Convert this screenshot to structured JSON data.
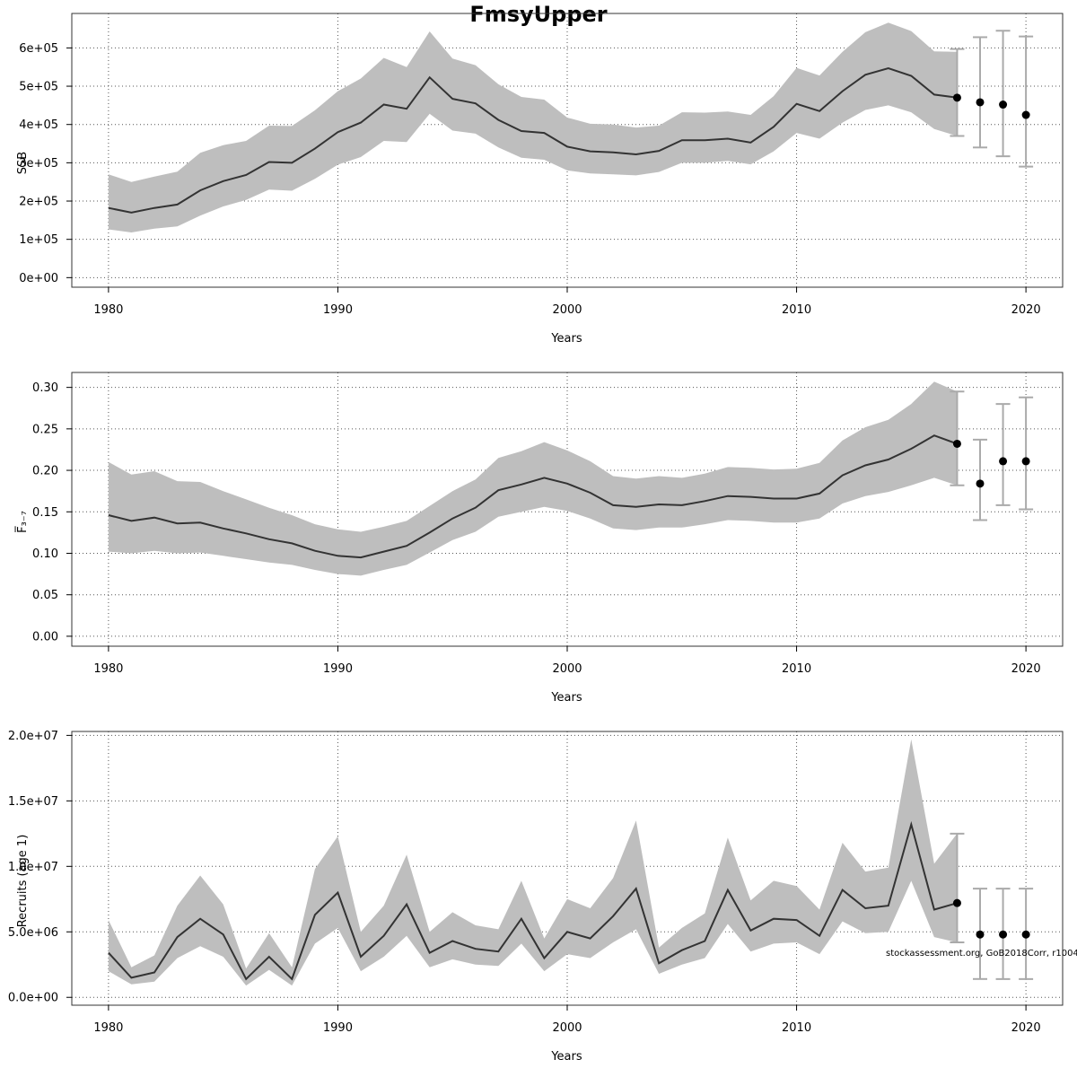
{
  "title": "FmsyUpper",
  "watermark": "stockassessment.org, GoB2018Corr, r10042",
  "colors": {
    "band": "#bebebe",
    "line": "#333333",
    "errorbar": "#aaaaaa",
    "point": "#000000",
    "grid": "#555555"
  },
  "chart_data": [
    {
      "type": "line",
      "xlabel": "Years",
      "ylabel": "SSB",
      "xlim": [
        1978.4,
        2021.6
      ],
      "ylim": [
        -25000,
        690000
      ],
      "xticks": [
        1980,
        1990,
        2000,
        2010,
        2020
      ],
      "yticks": [
        0,
        100000,
        200000,
        300000,
        400000,
        500000,
        600000
      ],
      "ytick_labels": [
        "0e+00",
        "1e+05",
        "2e+05",
        "3e+05",
        "4e+05",
        "5e+05",
        "6e+05"
      ],
      "grid": true,
      "x": [
        1980,
        1981,
        1982,
        1983,
        1984,
        1985,
        1986,
        1987,
        1988,
        1989,
        1990,
        1991,
        1992,
        1993,
        1994,
        1995,
        1996,
        1997,
        1998,
        1999,
        2000,
        2001,
        2002,
        2003,
        2004,
        2005,
        2006,
        2007,
        2008,
        2009,
        2010,
        2011,
        2012,
        2013,
        2014,
        2015,
        2016,
        2017
      ],
      "estimate": [
        182000,
        170000,
        182000,
        191000,
        228000,
        252000,
        268000,
        302000,
        300000,
        337000,
        380000,
        405000,
        452000,
        441000,
        523000,
        467000,
        455000,
        412000,
        383000,
        378000,
        342000,
        330000,
        327000,
        322000,
        331000,
        359000,
        359000,
        363000,
        353000,
        394000,
        454000,
        435000,
        487000,
        530000,
        547000,
        527000,
        478000,
        470000
      ],
      "lower": [
        126000,
        118000,
        128000,
        134000,
        162000,
        186000,
        203000,
        230000,
        227000,
        258000,
        295000,
        315000,
        357000,
        354000,
        428000,
        384000,
        376000,
        340000,
        313000,
        308000,
        280000,
        272000,
        270000,
        267000,
        276000,
        300000,
        300000,
        305000,
        296000,
        330000,
        378000,
        363000,
        405000,
        438000,
        450000,
        432000,
        388000,
        370000
      ],
      "upper": [
        270000,
        250000,
        264000,
        277000,
        326000,
        346000,
        357000,
        397000,
        396000,
        437000,
        487000,
        520000,
        574000,
        550000,
        643000,
        572000,
        555000,
        505000,
        472000,
        465000,
        418000,
        402000,
        400000,
        392000,
        397000,
        432000,
        431000,
        434000,
        425000,
        474000,
        548000,
        528000,
        590000,
        641000,
        666000,
        644000,
        591000,
        590000
      ],
      "forecast": {
        "x": [
          2017,
          2018,
          2019,
          2020
        ],
        "values": [
          470000,
          458000,
          452000,
          425000
        ],
        "lower": [
          370000,
          340000,
          317000,
          290000
        ],
        "upper": [
          597000,
          628000,
          645000,
          630000
        ]
      }
    },
    {
      "type": "line",
      "xlabel": "Years",
      "ylabel": "F̅₃₋₇",
      "xlim": [
        1978.4,
        2021.6
      ],
      "ylim": [
        -0.012,
        0.318
      ],
      "xticks": [
        1980,
        1990,
        2000,
        2010,
        2020
      ],
      "yticks": [
        0.0,
        0.05,
        0.1,
        0.15,
        0.2,
        0.25,
        0.3
      ],
      "ytick_labels": [
        "0.00",
        "0.05",
        "0.10",
        "0.15",
        "0.20",
        "0.25",
        "0.30"
      ],
      "grid": true,
      "x": [
        1980,
        1981,
        1982,
        1983,
        1984,
        1985,
        1986,
        1987,
        1988,
        1989,
        1990,
        1991,
        1992,
        1993,
        1994,
        1995,
        1996,
        1997,
        1998,
        1999,
        2000,
        2001,
        2002,
        2003,
        2004,
        2005,
        2006,
        2007,
        2008,
        2009,
        2010,
        2011,
        2012,
        2013,
        2014,
        2015,
        2016,
        2017
      ],
      "estimate": [
        0.146,
        0.139,
        0.143,
        0.136,
        0.137,
        0.13,
        0.124,
        0.117,
        0.112,
        0.103,
        0.097,
        0.095,
        0.102,
        0.109,
        0.125,
        0.142,
        0.155,
        0.176,
        0.183,
        0.191,
        0.184,
        0.173,
        0.158,
        0.156,
        0.159,
        0.158,
        0.163,
        0.169,
        0.168,
        0.166,
        0.166,
        0.172,
        0.194,
        0.206,
        0.213,
        0.226,
        0.242,
        0.232
      ],
      "lower": [
        0.102,
        0.1,
        0.103,
        0.1,
        0.101,
        0.097,
        0.093,
        0.089,
        0.086,
        0.08,
        0.075,
        0.073,
        0.08,
        0.086,
        0.101,
        0.116,
        0.126,
        0.144,
        0.15,
        0.156,
        0.151,
        0.142,
        0.13,
        0.128,
        0.131,
        0.131,
        0.135,
        0.14,
        0.139,
        0.137,
        0.137,
        0.142,
        0.16,
        0.169,
        0.174,
        0.182,
        0.191,
        0.182
      ],
      "upper": [
        0.21,
        0.195,
        0.199,
        0.187,
        0.186,
        0.175,
        0.165,
        0.155,
        0.146,
        0.135,
        0.129,
        0.126,
        0.132,
        0.139,
        0.157,
        0.175,
        0.189,
        0.215,
        0.223,
        0.234,
        0.224,
        0.211,
        0.193,
        0.19,
        0.193,
        0.191,
        0.196,
        0.204,
        0.203,
        0.201,
        0.202,
        0.209,
        0.236,
        0.252,
        0.261,
        0.28,
        0.307,
        0.295
      ],
      "forecast": {
        "x": [
          2017,
          2018,
          2019,
          2020
        ],
        "values": [
          0.232,
          0.184,
          0.211,
          0.211
        ],
        "lower": [
          0.182,
          0.14,
          0.158,
          0.153
        ],
        "upper": [
          0.295,
          0.237,
          0.28,
          0.288
        ]
      }
    },
    {
      "type": "line",
      "xlabel": "Years",
      "ylabel": "Recruits (age 1)",
      "xlim": [
        1978.4,
        2021.6
      ],
      "ylim": [
        -600000,
        20300000
      ],
      "xticks": [
        1980,
        1990,
        2000,
        2010,
        2020
      ],
      "yticks": [
        0,
        5000000,
        10000000,
        15000000,
        20000000
      ],
      "ytick_labels": [
        "0.0e+00",
        "5.0e+06",
        "1.0e+07",
        "1.5e+07",
        "2.0e+07"
      ],
      "grid": true,
      "x": [
        1980,
        1981,
        1982,
        1983,
        1984,
        1985,
        1986,
        1987,
        1988,
        1989,
        1990,
        1991,
        1992,
        1993,
        1994,
        1995,
        1996,
        1997,
        1998,
        1999,
        2000,
        2001,
        2002,
        2003,
        2004,
        2005,
        2006,
        2007,
        2008,
        2009,
        2010,
        2011,
        2012,
        2013,
        2014,
        2015,
        2016,
        2017
      ],
      "estimate": [
        3400000,
        1500000,
        1900000,
        4600000,
        6000000,
        4800000,
        1400000,
        3100000,
        1400000,
        6300000,
        8000000,
        3100000,
        4700000,
        7100000,
        3400000,
        4300000,
        3700000,
        3500000,
        6000000,
        3000000,
        5000000,
        4500000,
        6200000,
        8300000,
        2600000,
        3600000,
        4300000,
        8200000,
        5100000,
        6000000,
        5900000,
        4700000,
        8200000,
        6800000,
        7000000,
        13200000,
        6700000,
        7200000
      ],
      "lower": [
        2000000,
        1000000,
        1200000,
        3000000,
        3900000,
        3100000,
        900000,
        2100000,
        900000,
        4100000,
        5300000,
        2000000,
        3100000,
        4700000,
        2300000,
        2900000,
        2500000,
        2400000,
        4100000,
        2000000,
        3300000,
        3000000,
        4200000,
        5200000,
        1800000,
        2500000,
        3000000,
        5600000,
        3500000,
        4100000,
        4200000,
        3300000,
        5800000,
        4900000,
        5000000,
        8900000,
        4600000,
        4200000
      ],
      "upper": [
        5900000,
        2300000,
        3200000,
        7000000,
        9300000,
        7100000,
        2200000,
        4900000,
        2300000,
        9800000,
        12300000,
        5000000,
        7000000,
        10900000,
        5000000,
        6500000,
        5500000,
        5200000,
        8900000,
        4500000,
        7500000,
        6800000,
        9100000,
        13500000,
        3800000,
        5300000,
        6400000,
        12200000,
        7400000,
        8900000,
        8500000,
        6700000,
        11800000,
        9600000,
        9900000,
        19700000,
        10200000,
        12500000
      ],
      "forecast": {
        "x": [
          2017,
          2018,
          2019,
          2020
        ],
        "values": [
          7200000,
          4800000,
          4800000,
          4800000
        ],
        "lower": [
          4200000,
          1400000,
          1400000,
          1400000
        ],
        "upper": [
          12500000,
          8300000,
          8300000,
          8300000
        ]
      }
    }
  ]
}
